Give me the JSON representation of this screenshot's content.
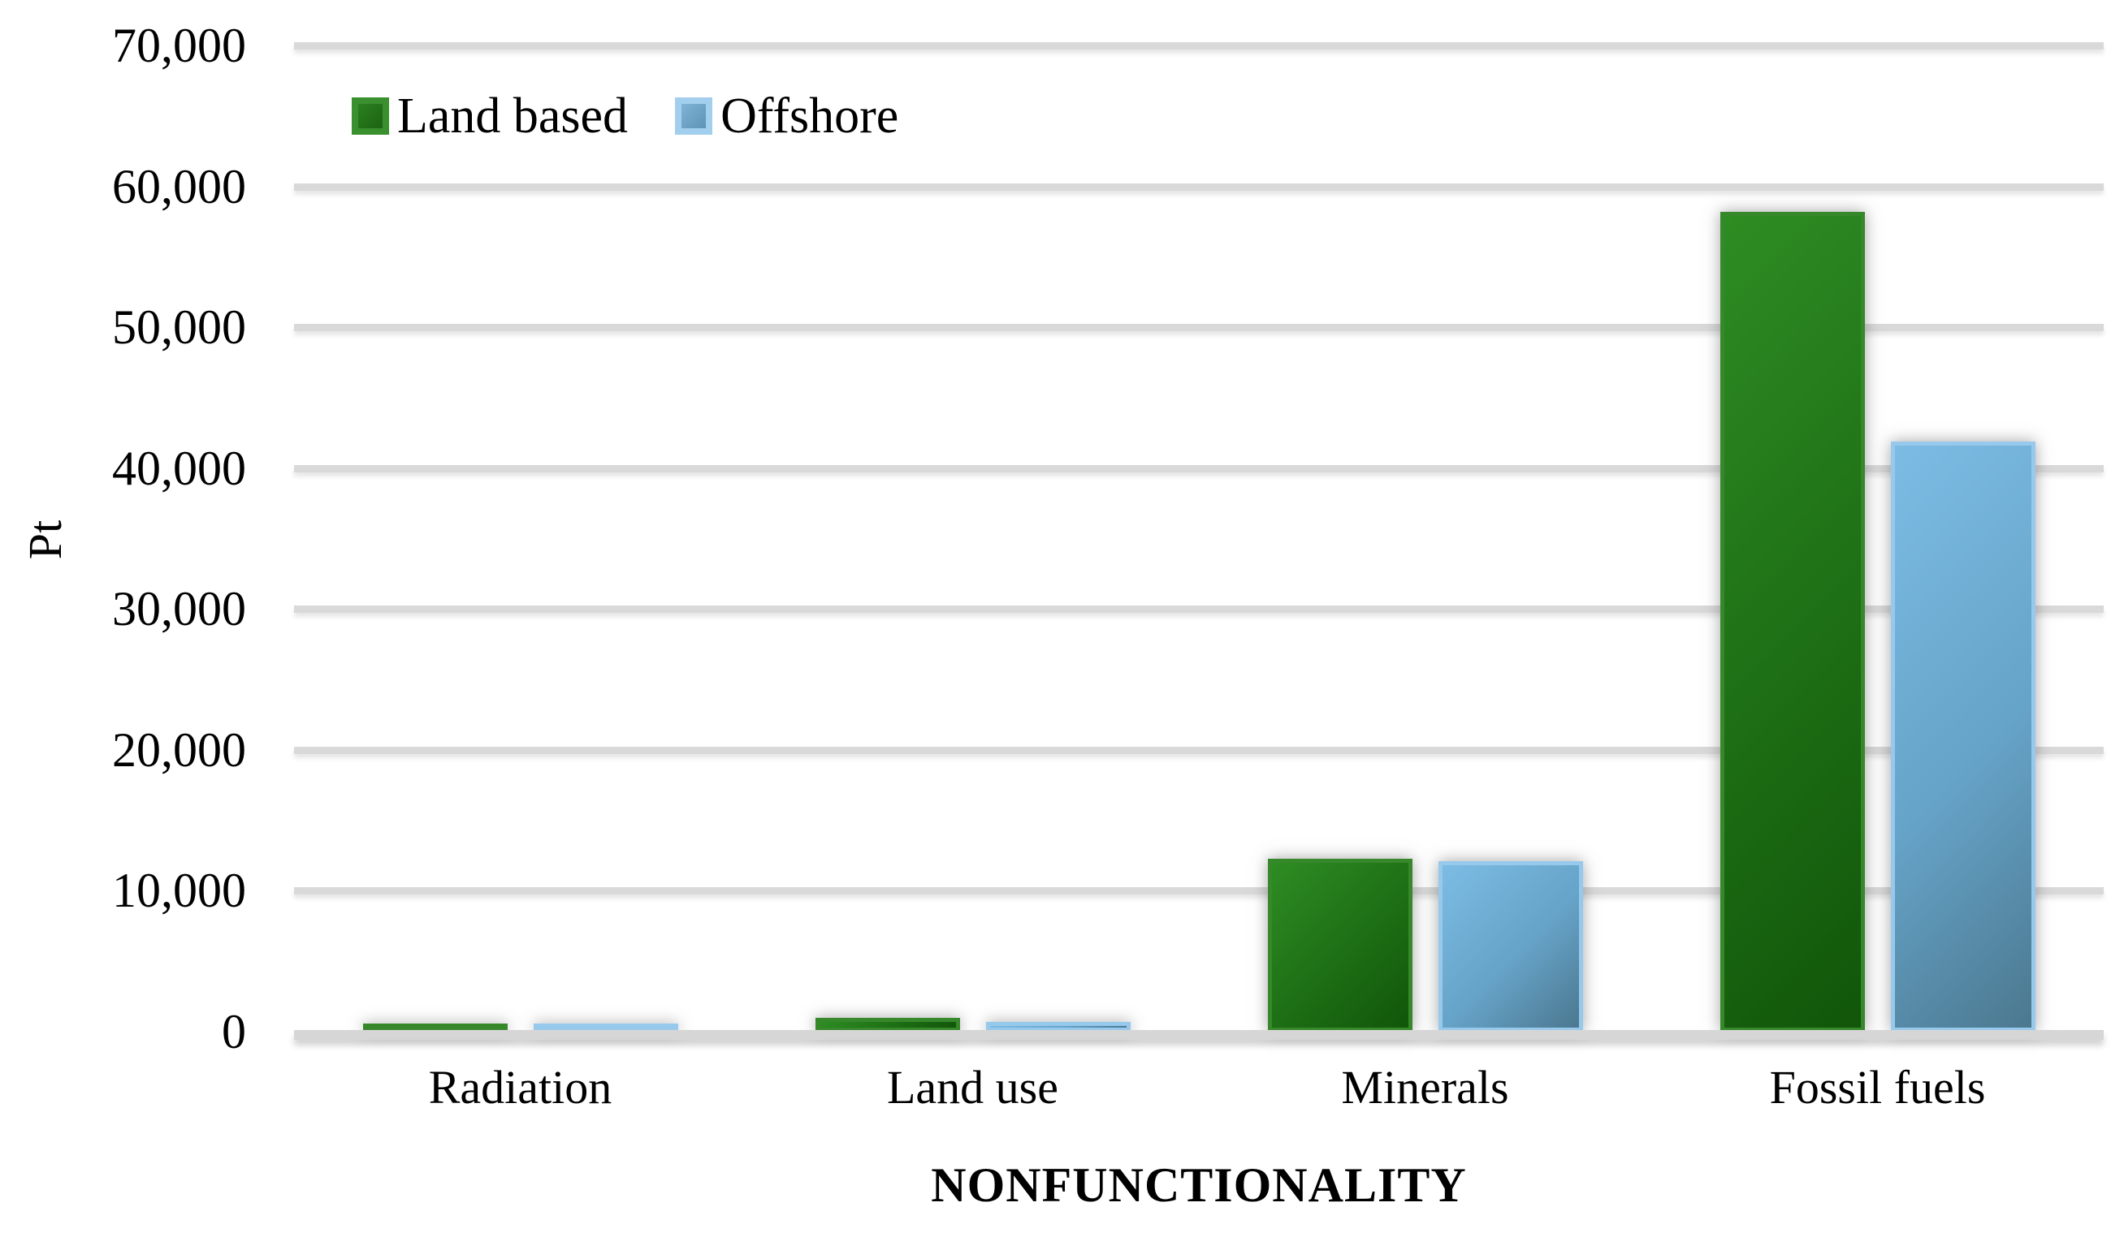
{
  "figure": {
    "y_axis_title": "Pt",
    "x_axis_title": "NONFUNCTIONALITY"
  },
  "legend": {
    "items": [
      {
        "label": "Land based",
        "color": "#2a8621"
      },
      {
        "label": "Offshore",
        "color": "#74b5dd"
      }
    ]
  },
  "chart_data": {
    "type": "bar",
    "title": "",
    "xlabel": "NONFUNCTIONALITY",
    "ylabel": "Pt",
    "categories": [
      "Radiation",
      "Land use",
      "Minerals",
      "Fossil fuels"
    ],
    "series": [
      {
        "name": "Land based",
        "color": "#2a8621",
        "values": [
          450,
          1000,
          12300,
          58200
        ]
      },
      {
        "name": "Offshore",
        "color": "#74b5dd",
        "values": [
          400,
          700,
          12100,
          41900
        ]
      }
    ],
    "ylim": [
      0,
      70000
    ],
    "y_tick_step": 10000,
    "y_tick_labels": [
      "0",
      "10,000",
      "20,000",
      "30,000",
      "40,000",
      "50,000",
      "60,000",
      "70,000"
    ],
    "grid": "horizontal",
    "legend_position": "top-left-inside",
    "gridline_color": "#d9d9d9",
    "background_color": "#ffffff"
  }
}
